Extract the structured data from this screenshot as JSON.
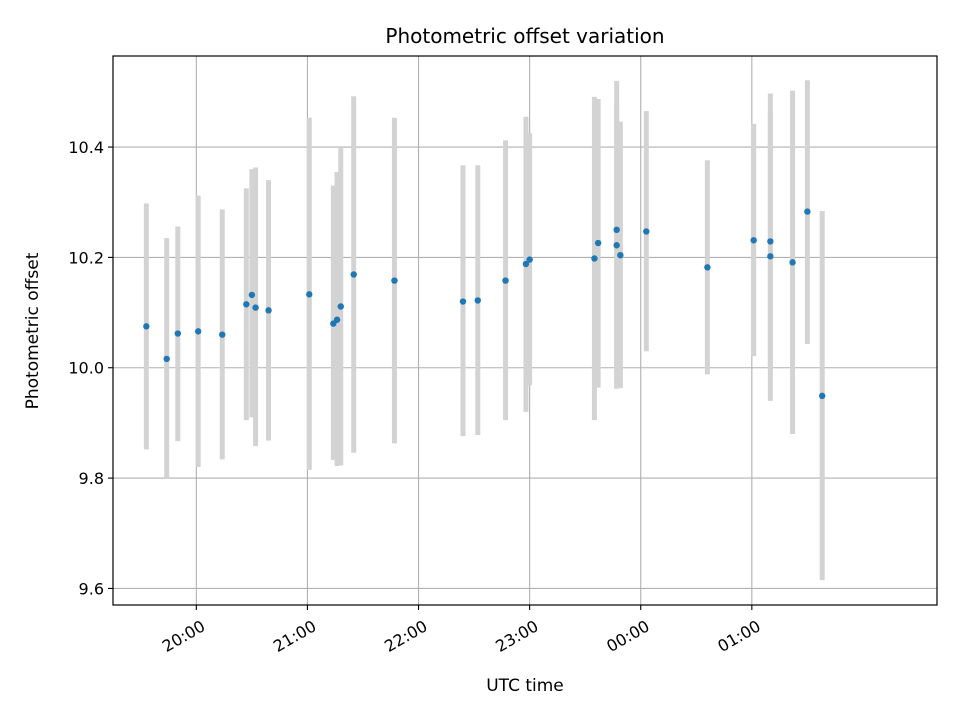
{
  "chart_data": {
    "type": "scatter",
    "title": "Photometric offset variation",
    "xlabel": "UTC time",
    "ylabel": "Photometric offset",
    "grid": true,
    "x_axis_type": "time",
    "xlim": [
      "19:15",
      "02:40"
    ],
    "ylim": [
      9.57,
      10.565
    ],
    "y_ticks": [
      9.6,
      9.8,
      10.0,
      10.2,
      10.4
    ],
    "x_ticks": [
      "20:00",
      "21:00",
      "22:00",
      "23:00",
      "00:00",
      "01:00"
    ],
    "colors": {
      "point": "#1f77b4",
      "errorbar": "#d3d3d3",
      "grid": "#b0b0b0"
    },
    "points": [
      {
        "t": "19:33",
        "y": 10.075,
        "lo": 9.852,
        "hi": 10.298
      },
      {
        "t": "19:44",
        "y": 10.016,
        "lo": 9.8,
        "hi": 10.235
      },
      {
        "t": "19:50",
        "y": 10.062,
        "lo": 9.867,
        "hi": 10.256
      },
      {
        "t": "20:01",
        "y": 10.066,
        "lo": 9.82,
        "hi": 10.312
      },
      {
        "t": "20:14",
        "y": 10.06,
        "lo": 9.834,
        "hi": 10.287
      },
      {
        "t": "20:27",
        "y": 10.115,
        "lo": 9.905,
        "hi": 10.325
      },
      {
        "t": "20:30",
        "y": 10.132,
        "lo": 9.91,
        "hi": 10.36
      },
      {
        "t": "20:32",
        "y": 10.109,
        "lo": 9.858,
        "hi": 10.363
      },
      {
        "t": "20:39",
        "y": 10.104,
        "lo": 9.868,
        "hi": 10.34
      },
      {
        "t": "21:01",
        "y": 10.133,
        "lo": 9.815,
        "hi": 10.453
      },
      {
        "t": "21:14",
        "y": 10.08,
        "lo": 9.833,
        "hi": 10.33
      },
      {
        "t": "21:16",
        "y": 10.087,
        "lo": 9.822,
        "hi": 10.355
      },
      {
        "t": "21:18",
        "y": 10.111,
        "lo": 9.823,
        "hi": 10.398
      },
      {
        "t": "21:25",
        "y": 10.169,
        "lo": 9.846,
        "hi": 10.492
      },
      {
        "t": "21:47",
        "y": 10.158,
        "lo": 9.863,
        "hi": 10.453
      },
      {
        "t": "22:24",
        "y": 10.12,
        "lo": 9.876,
        "hi": 10.367
      },
      {
        "t": "22:32",
        "y": 10.122,
        "lo": 9.878,
        "hi": 10.367
      },
      {
        "t": "22:47",
        "y": 10.158,
        "lo": 9.905,
        "hi": 10.412
      },
      {
        "t": "22:58",
        "y": 10.188,
        "lo": 9.92,
        "hi": 10.455
      },
      {
        "t": "23:00",
        "y": 10.196,
        "lo": 9.968,
        "hi": 10.425
      },
      {
        "t": "23:35",
        "y": 10.198,
        "lo": 9.905,
        "hi": 10.491
      },
      {
        "t": "23:37",
        "y": 10.226,
        "lo": 9.964,
        "hi": 10.487
      },
      {
        "t": "23:47",
        "y": 10.25,
        "lo": 9.962,
        "hi": 10.52
      },
      {
        "t": "23:47",
        "y": 10.222,
        "lo": 9.965,
        "hi": 10.48
      },
      {
        "t": "23:49",
        "y": 10.204,
        "lo": 9.963,
        "hi": 10.446
      },
      {
        "t": "00:03",
        "y": 10.247,
        "lo": 10.03,
        "hi": 10.465
      },
      {
        "t": "00:36",
        "y": 10.182,
        "lo": 9.988,
        "hi": 10.376
      },
      {
        "t": "01:01",
        "y": 10.231,
        "lo": 10.021,
        "hi": 10.442
      },
      {
        "t": "01:10",
        "y": 10.229,
        "lo": 9.997,
        "hi": 10.463
      },
      {
        "t": "01:10",
        "y": 10.202,
        "lo": 9.94,
        "hi": 10.497
      },
      {
        "t": "01:22",
        "y": 10.191,
        "lo": 9.88,
        "hi": 10.502
      },
      {
        "t": "01:30",
        "y": 10.283,
        "lo": 10.043,
        "hi": 10.521
      },
      {
        "t": "01:38",
        "y": 9.949,
        "lo": 9.615,
        "hi": 10.284
      }
    ]
  }
}
